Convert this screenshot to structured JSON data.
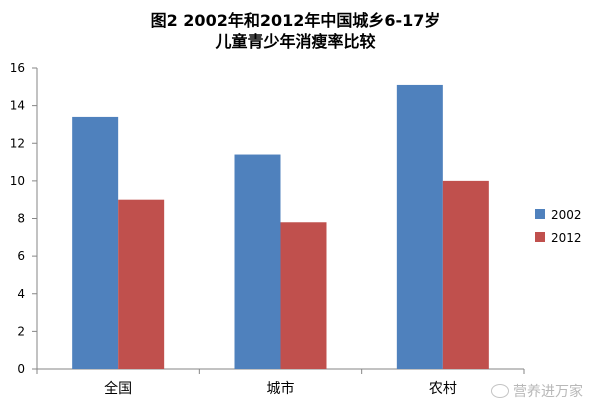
{
  "chart_data": {
    "type": "bar",
    "title_line1": "图2  2002年和2012年中国城乡6-17岁",
    "title_line2": "儿童青少年消瘦率比较",
    "categories": [
      "全国",
      "城市",
      "农村"
    ],
    "series": [
      {
        "name": "2002",
        "values": [
          13.4,
          11.4,
          15.1
        ],
        "color": "#4f81bd"
      },
      {
        "name": "2012",
        "values": [
          9.0,
          7.8,
          10.0
        ],
        "color": "#c0504d"
      }
    ],
    "yticks": [
      "0",
      "2",
      "4",
      "6",
      "8",
      "10",
      "12",
      "14",
      "16"
    ],
    "ylim": [
      0,
      16
    ],
    "grid": false,
    "legend_position": "right"
  },
  "watermark": {
    "text": "营养进万家",
    "icon": "wechat-icon"
  }
}
